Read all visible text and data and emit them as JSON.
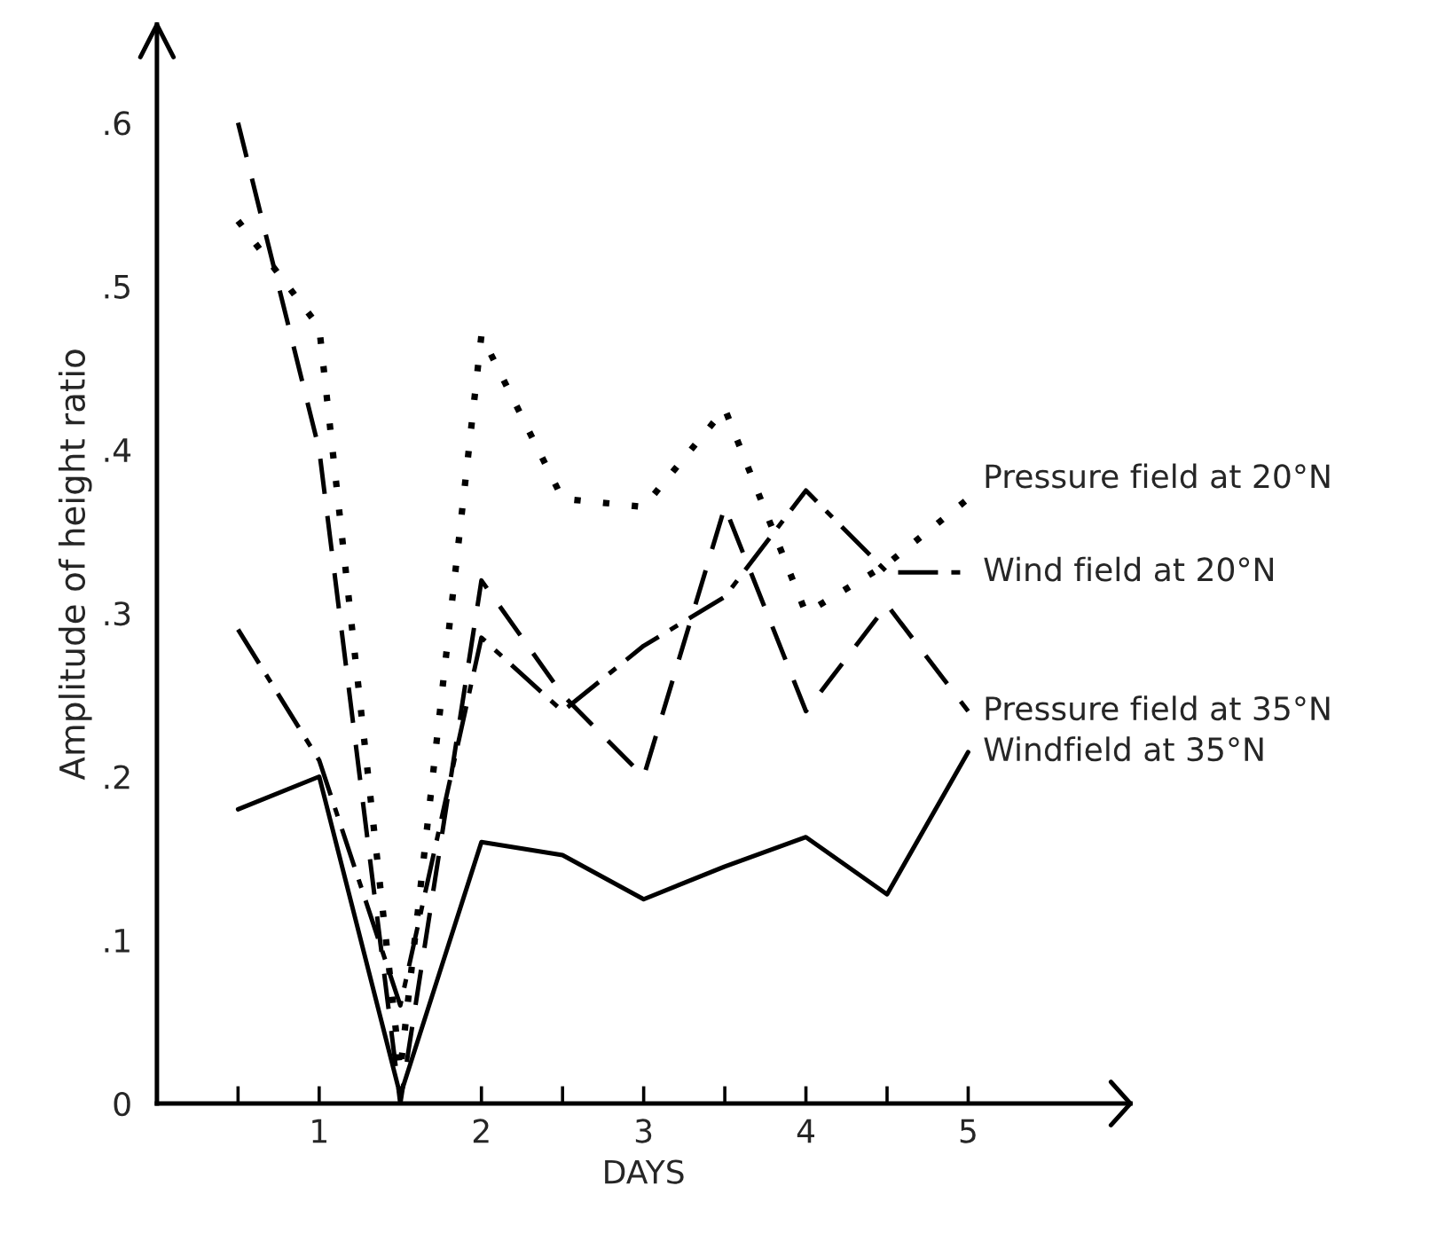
{
  "chart_data": {
    "type": "line",
    "xlabel": "DAYS",
    "ylabel": "Amplitude of height ratio",
    "x": [
      0.5,
      1,
      1.5,
      2,
      2.5,
      3,
      3.5,
      4,
      4.5,
      5
    ],
    "series": [
      {
        "name": "Pressure field at 20°N",
        "color": "#000000",
        "line_style": "dotted",
        "values": [
          0.54,
          0.475,
          0.02,
          0.47,
          0.37,
          0.365,
          0.425,
          0.3,
          0.33,
          0.37
        ]
      },
      {
        "name": "Wind field at 20°N",
        "color": "#000000",
        "line_style": "dashdot",
        "values": [
          0.29,
          0.21,
          0.06,
          0.285,
          0.24,
          0.28,
          0.31,
          0.375,
          0.325,
          0.325
        ]
      },
      {
        "name": "Pressure field at 35°N",
        "color": "#000000",
        "line_style": "dashed",
        "values": [
          0.6,
          0.4,
          0.0,
          0.32,
          0.25,
          0.2,
          0.365,
          0.24,
          0.305,
          0.24
        ]
      },
      {
        "name": "Windfield at 35°N",
        "color": "#000000",
        "line_style": "solid",
        "values": [
          0.18,
          0.2,
          0.005,
          0.16,
          0.152,
          0.125,
          0.145,
          0.163,
          0.128,
          0.215
        ]
      }
    ],
    "xlim": [
      0,
      6
    ],
    "ylim": [
      0,
      0.66
    ],
    "xticks": [
      {
        "value": 0.5,
        "label": null
      },
      1,
      {
        "value": 1.5,
        "label": null
      },
      2,
      {
        "value": 2.5,
        "label": null
      },
      3,
      {
        "value": 3.5,
        "label": null
      },
      4,
      {
        "value": 4.5,
        "label": null
      },
      5
    ],
    "yticks": [
      0,
      {
        "value": 0.1,
        "label": ".1"
      },
      {
        "value": 0.2,
        "label": ".2"
      },
      {
        "value": 0.3,
        "label": ".3"
      },
      {
        "value": 0.4,
        "label": ".4"
      },
      {
        "value": 0.5,
        "label": ".5"
      },
      {
        "value": 0.6,
        "label": ".6"
      }
    ],
    "grid": false,
    "legend": false,
    "marker": "none"
  }
}
